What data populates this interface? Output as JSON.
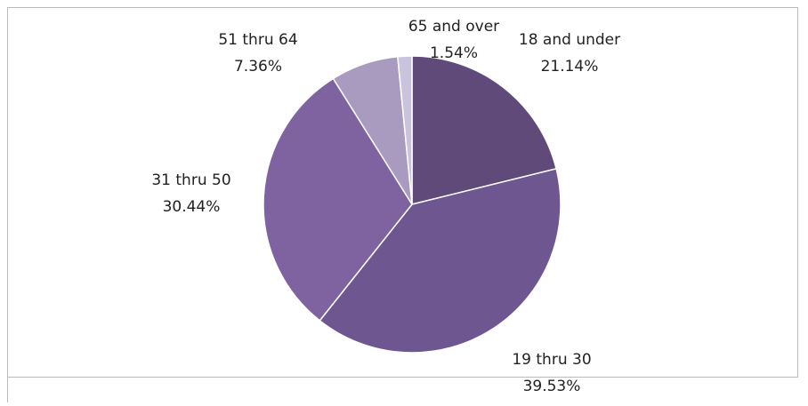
{
  "chart_data": {
    "type": "pie",
    "categories": [
      "18 and under",
      "19 thru 30",
      "31 thru 50",
      "51 thru 64",
      "65 and over"
    ],
    "values": [
      21.14,
      39.53,
      30.44,
      7.36,
      1.54
    ],
    "value_labels": [
      "21.14%",
      "39.53%",
      "30.44%",
      "7.36%",
      "1.54%"
    ],
    "colors": [
      "#5f4a7a",
      "#6e5690",
      "#7f63a1",
      "#a89bbf",
      "#cac3dc"
    ]
  }
}
